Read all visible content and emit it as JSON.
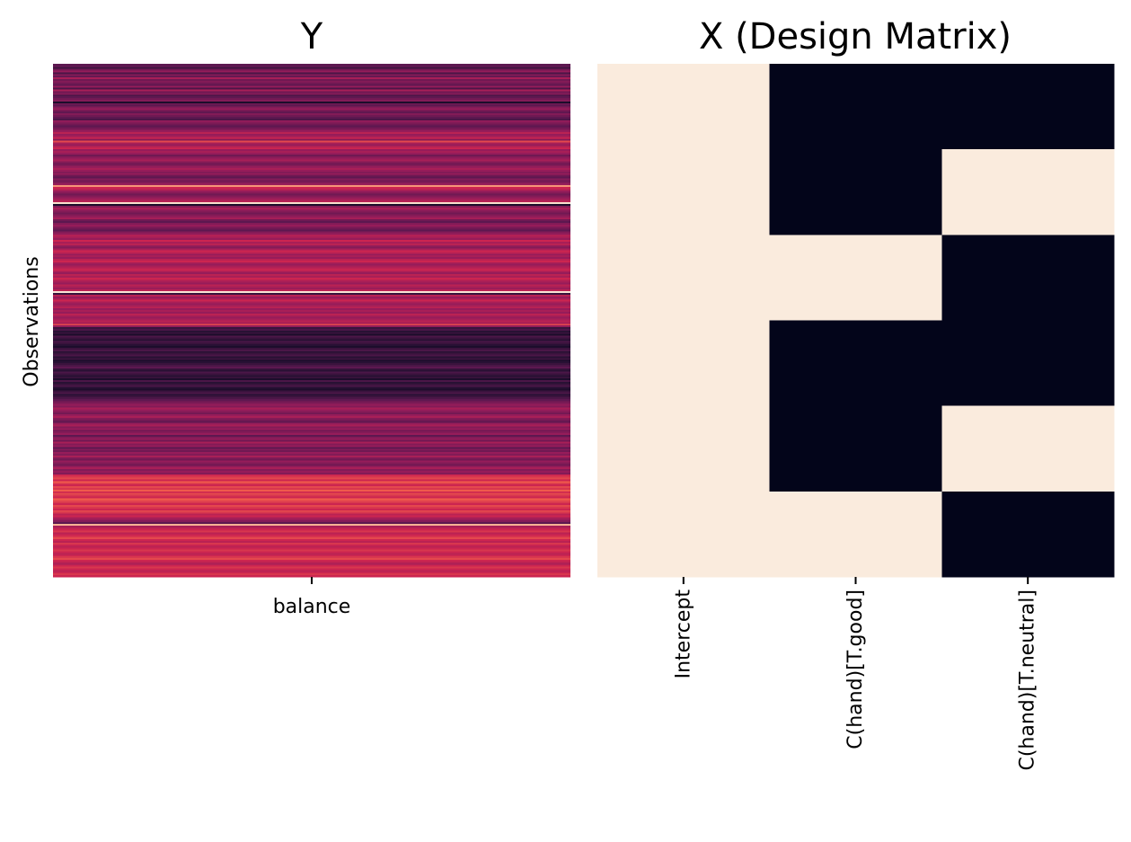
{
  "chart_data": [
    {
      "type": "heatmap",
      "title": "Y",
      "xlabel": "",
      "ylabel": "Observations",
      "x_tick_labels": [
        "balance"
      ],
      "y_tick_labels": [],
      "colormap": "rocket",
      "value_range": [
        0,
        1
      ],
      "n_rows": 300,
      "column_values": [
        [
          0.3,
          0.3,
          0.2,
          0.35,
          0.45,
          0.25,
          0.4,
          0.3,
          0.5,
          0.35,
          0.4,
          0.35,
          0.3,
          0.45,
          0.25,
          0.5,
          0.35,
          0.4,
          0.25,
          0.3,
          0.35,
          0.4,
          0.1,
          0.35,
          0.3,
          0.4,
          0.45,
          0.35,
          0.3,
          0.4,
          0.35,
          0.3,
          0.25,
          0.45,
          0.4,
          0.35,
          0.3,
          0.35,
          0.4,
          0.45,
          0.55,
          0.45,
          0.5,
          0.6,
          0.4,
          0.7,
          0.5,
          0.45,
          0.55,
          0.6,
          0.45,
          0.5,
          0.45,
          0.35,
          0.4,
          0.45,
          0.5,
          0.4,
          0.35,
          0.4,
          0.45,
          0.5,
          0.45,
          0.4,
          0.45,
          0.35,
          0.3,
          0.4,
          0.35,
          0.4,
          0.45,
          0.85,
          0.6,
          0.55,
          0.45,
          0.4,
          0.35,
          0.4,
          0.45,
          0.5,
          0.55,
          0.98,
          0.1,
          0.4,
          0.5,
          0.45,
          0.4,
          0.35,
          0.4,
          0.45,
          0.5,
          0.35,
          0.3,
          0.4,
          0.45,
          0.4,
          0.35,
          0.3,
          0.4,
          0.45,
          0.55,
          0.5,
          0.45,
          0.6,
          0.5,
          0.55,
          0.45,
          0.4,
          0.5,
          0.6,
          0.55,
          0.45,
          0.5,
          0.45,
          0.55,
          0.6,
          0.5,
          0.45,
          0.5,
          0.55,
          0.6,
          0.5,
          0.45,
          0.55,
          0.5,
          0.6,
          0.55,
          0.5,
          0.45,
          0.55,
          0.5,
          0.45,
          0.55,
          0.99,
          0.2,
          0.55,
          0.45,
          0.5,
          0.6,
          0.5,
          0.45,
          0.5,
          0.55,
          0.45,
          0.5,
          0.45,
          0.55,
          0.5,
          0.45,
          0.5,
          0.55,
          0.5,
          0.7,
          0.45,
          0.2,
          0.25,
          0.15,
          0.2,
          0.1,
          0.25,
          0.2,
          0.15,
          0.25,
          0.2,
          0.15,
          0.1,
          0.2,
          0.25,
          0.15,
          0.2,
          0.25,
          0.15,
          0.2,
          0.1,
          0.15,
          0.2,
          0.25,
          0.3,
          0.2,
          0.15,
          0.25,
          0.2,
          0.15,
          0.2,
          0.1,
          0.25,
          0.15,
          0.2,
          0.25,
          0.15,
          0.1,
          0.2,
          0.25,
          0.15,
          0.2,
          0.25,
          0.3,
          0.35,
          0.4,
          0.45,
          0.4,
          0.5,
          0.45,
          0.4,
          0.35,
          0.45,
          0.5,
          0.4,
          0.35,
          0.3,
          0.45,
          0.5,
          0.4,
          0.45,
          0.35,
          0.4,
          0.45,
          0.3,
          0.4,
          0.45,
          0.35,
          0.5,
          0.4,
          0.45,
          0.3,
          0.4,
          0.35,
          0.45,
          0.4,
          0.5,
          0.4,
          0.35,
          0.45,
          0.4,
          0.35,
          0.45,
          0.5,
          0.4,
          0.45,
          0.4,
          0.6,
          0.65,
          0.7,
          0.6,
          0.75,
          0.65,
          0.6,
          0.7,
          0.65,
          0.75,
          0.6,
          0.7,
          0.65,
          0.6,
          0.75,
          0.7,
          0.65,
          0.6,
          0.7,
          0.65,
          0.6,
          0.7,
          0.65,
          0.55,
          0.6,
          0.5,
          0.45,
          0.4,
          0.3,
          0.9,
          0.5,
          0.55,
          0.6,
          0.65,
          0.55,
          0.6,
          0.65,
          0.7,
          0.6,
          0.55,
          0.65,
          0.6,
          0.55,
          0.6,
          0.65,
          0.6,
          0.55,
          0.6,
          0.65,
          0.7,
          0.6,
          0.55,
          0.5,
          0.6,
          0.65,
          0.6,
          0.55,
          0.6,
          0.65,
          0.6
        ]
      ]
    },
    {
      "type": "heatmap",
      "title": "X (Design Matrix)",
      "xlabel": "",
      "ylabel": "",
      "x_tick_labels": [
        "Intercept",
        "C(hand)[T.good]",
        "C(hand)[T.neutral]"
      ],
      "y_tick_labels": [],
      "colormap": "rocket",
      "value_range": [
        0,
        1
      ],
      "matrix": [
        [
          1,
          0,
          0
        ],
        [
          1,
          0,
          1
        ],
        [
          1,
          1,
          0
        ],
        [
          1,
          0,
          0
        ],
        [
          1,
          0,
          1
        ],
        [
          1,
          1,
          0
        ]
      ]
    }
  ]
}
